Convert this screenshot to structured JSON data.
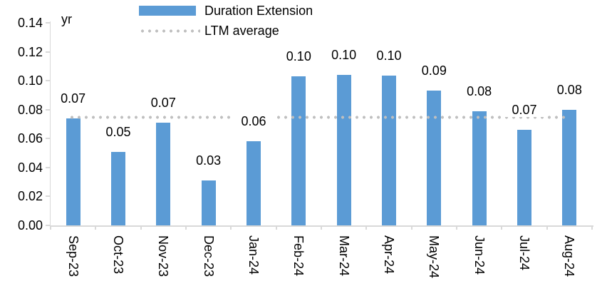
{
  "unit_label": "yr",
  "legend": {
    "items": [
      {
        "label": "Duration Extension",
        "swatch": "bar"
      },
      {
        "label": "LTM average",
        "swatch": "dotted-line"
      }
    ]
  },
  "colors": {
    "bar": "#5B9BD5",
    "ltm_line": "#BFBFBF",
    "axis_line": "#D9D9D9",
    "label_text": "#000000",
    "background": "#FFFFFF"
  },
  "chart_data": {
    "type": "bar",
    "title": "",
    "unit": "yr",
    "categories": [
      "Sep-23",
      "Oct-23",
      "Nov-23",
      "Dec-23",
      "Jan-24",
      "Feb-24",
      "Mar-24",
      "Apr-24",
      "May-24",
      "Jun-24",
      "Jul-24",
      "Aug-24"
    ],
    "series": [
      {
        "name": "Duration Extension",
        "type": "bar",
        "values": [
          0.074,
          0.051,
          0.071,
          0.031,
          0.058,
          0.103,
          0.104,
          0.1035,
          0.093,
          0.079,
          0.066,
          0.08
        ],
        "data_labels": [
          "0.07",
          "0.05",
          "0.07",
          "0.03",
          "0.06",
          "0.10",
          "0.10",
          "0.10",
          "0.09",
          "0.08",
          "0.07",
          "0.08"
        ]
      },
      {
        "name": "LTM average",
        "type": "line",
        "line_style": "dotted",
        "value": 0.0747
      }
    ],
    "ylim": [
      0,
      0.14
    ],
    "ytick_step": 0.02,
    "ytick_labels": [
      "0.00",
      "0.02",
      "0.04",
      "0.06",
      "0.08",
      "0.10",
      "0.12",
      "0.14"
    ],
    "legend_position": "top",
    "grid": false,
    "x_label_rotation_deg": 90
  }
}
